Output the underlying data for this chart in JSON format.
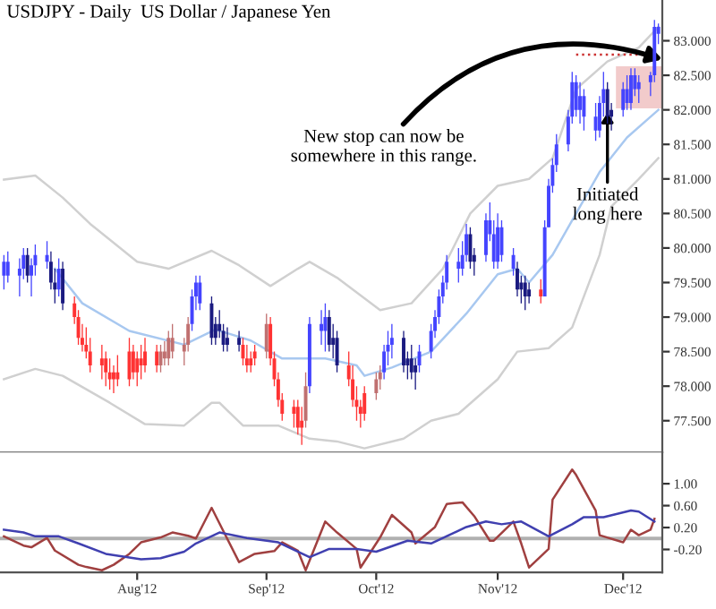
{
  "chart_data": [
    {
      "type": "candlestick",
      "title": "USDJPY - Daily  US Dollar / Japanese Yen",
      "x": [
        "2012-06-28",
        "2012-06-29",
        "2012-07-02",
        "2012-07-03",
        "2012-07-04",
        "2012-07-05",
        "2012-07-06",
        "2012-07-09",
        "2012-07-10",
        "2012-07-11",
        "2012-07-12",
        "2012-07-13",
        "2012-07-16",
        "2012-07-17",
        "2012-07-18",
        "2012-07-19",
        "2012-07-20",
        "2012-07-23",
        "2012-07-24",
        "2012-07-25",
        "2012-07-26",
        "2012-07-27",
        "2012-07-30",
        "2012-07-31",
        "2012-08-01",
        "2012-08-02",
        "2012-08-03",
        "2012-08-06",
        "2012-08-07",
        "2012-08-08",
        "2012-08-09",
        "2012-08-10",
        "2012-08-13",
        "2012-08-14",
        "2012-08-15",
        "2012-08-16",
        "2012-08-17",
        "2012-08-20",
        "2012-08-21",
        "2012-08-22",
        "2012-08-23",
        "2012-08-24",
        "2012-08-27",
        "2012-08-28",
        "2012-08-29",
        "2012-08-30",
        "2012-08-31",
        "2012-09-03",
        "2012-09-04",
        "2012-09-05",
        "2012-09-06",
        "2012-09-07",
        "2012-09-10",
        "2012-09-11",
        "2012-09-12",
        "2012-09-13",
        "2012-09-14",
        "2012-09-17",
        "2012-09-18",
        "2012-09-19",
        "2012-09-20",
        "2012-09-21",
        "2012-09-24",
        "2012-09-25",
        "2012-09-26",
        "2012-09-27",
        "2012-09-28",
        "2012-10-01",
        "2012-10-02",
        "2012-10-03",
        "2012-10-04",
        "2012-10-05",
        "2012-10-08",
        "2012-10-09",
        "2012-10-10",
        "2012-10-11",
        "2012-10-12",
        "2012-10-15",
        "2012-10-16",
        "2012-10-17",
        "2012-10-18",
        "2012-10-19",
        "2012-10-22",
        "2012-10-23",
        "2012-10-24",
        "2012-10-25",
        "2012-10-26",
        "2012-10-29",
        "2012-10-30",
        "2012-10-31",
        "2012-11-01",
        "2012-11-02",
        "2012-11-05",
        "2012-11-06",
        "2012-11-07",
        "2012-11-08",
        "2012-11-09",
        "2012-11-12",
        "2012-11-13",
        "2012-11-14",
        "2012-11-15",
        "2012-11-16",
        "2012-11-19",
        "2012-11-20",
        "2012-11-21",
        "2012-11-22",
        "2012-11-23",
        "2012-11-26",
        "2012-11-27",
        "2012-11-28",
        "2012-11-29",
        "2012-11-30",
        "2012-12-03",
        "2012-12-04",
        "2012-12-05",
        "2012-12-06",
        "2012-12-07",
        "2012-12-10",
        "2012-12-11",
        "2012-12-12"
      ],
      "ohlc": [
        [
          79.6,
          79.9,
          79.4,
          79.8
        ],
        [
          79.6,
          79.95,
          79.5,
          79.8
        ],
        [
          79.6,
          79.85,
          79.3,
          79.7
        ],
        [
          79.7,
          80.0,
          79.55,
          79.9
        ],
        [
          79.9,
          80.0,
          79.5,
          79.6
        ],
        [
          79.6,
          79.85,
          79.3,
          79.75
        ],
        [
          79.75,
          80.05,
          79.6,
          79.9
        ],
        [
          79.8,
          80.1,
          79.7,
          79.9
        ],
        [
          79.8,
          79.95,
          79.4,
          79.5
        ],
        [
          79.5,
          79.7,
          79.2,
          79.4
        ],
        [
          79.4,
          79.85,
          79.3,
          79.7
        ],
        [
          79.7,
          79.8,
          79.1,
          79.2
        ],
        [
          79.2,
          79.3,
          78.9,
          79.0
        ],
        [
          79.0,
          79.1,
          78.6,
          78.7
        ],
        [
          78.7,
          78.9,
          78.5,
          78.6
        ],
        [
          78.6,
          78.85,
          78.4,
          78.5
        ],
        [
          78.5,
          78.7,
          78.2,
          78.3
        ],
        [
          78.4,
          78.6,
          78.1,
          78.3
        ],
        [
          78.4,
          78.5,
          78.0,
          78.2
        ],
        [
          78.2,
          78.4,
          77.95,
          78.1
        ],
        [
          78.2,
          78.3,
          77.9,
          78.1
        ],
        [
          78.2,
          78.45,
          78.0,
          78.1
        ],
        [
          78.5,
          78.7,
          78.0,
          78.1
        ],
        [
          78.5,
          78.6,
          78.1,
          78.2
        ],
        [
          78.4,
          78.5,
          78.0,
          78.2
        ],
        [
          78.4,
          78.6,
          78.1,
          78.3
        ],
        [
          78.5,
          78.7,
          78.2,
          78.3
        ],
        [
          78.5,
          78.6,
          78.2,
          78.3
        ],
        [
          78.3,
          78.6,
          78.2,
          78.5
        ],
        [
          78.4,
          78.65,
          78.3,
          78.5
        ],
        [
          78.4,
          78.8,
          78.3,
          78.7
        ],
        [
          78.5,
          78.9,
          78.4,
          78.7
        ],
        [
          78.5,
          78.7,
          78.3,
          78.6
        ],
        [
          78.6,
          79.0,
          78.5,
          78.9
        ],
        [
          78.9,
          79.4,
          78.8,
          79.3
        ],
        [
          79.3,
          79.6,
          79.1,
          79.5
        ],
        [
          79.2,
          79.6,
          79.1,
          79.5
        ],
        [
          79.2,
          79.3,
          78.6,
          78.7
        ],
        [
          78.9,
          79.0,
          78.6,
          78.7
        ],
        [
          78.9,
          79.1,
          78.7,
          78.8
        ],
        [
          78.8,
          78.9,
          78.5,
          78.6
        ],
        [
          78.7,
          78.85,
          78.5,
          78.6
        ],
        [
          78.7,
          78.8,
          78.5,
          78.6
        ],
        [
          78.6,
          78.7,
          78.3,
          78.4
        ],
        [
          78.4,
          78.6,
          78.2,
          78.3
        ],
        [
          78.4,
          78.5,
          78.2,
          78.3
        ],
        [
          78.5,
          78.6,
          78.3,
          78.4
        ],
        [
          78.5,
          79.05,
          78.4,
          78.9
        ],
        [
          78.9,
          79.0,
          78.3,
          78.4
        ],
        [
          78.4,
          78.5,
          78.0,
          78.1
        ],
        [
          78.1,
          78.2,
          77.7,
          77.8
        ],
        [
          77.8,
          77.9,
          77.5,
          77.6
        ],
        [
          77.7,
          77.8,
          77.4,
          77.6
        ],
        [
          77.7,
          77.8,
          77.3,
          77.4
        ],
        [
          77.5,
          77.7,
          77.15,
          77.4
        ],
        [
          77.5,
          78.2,
          77.4,
          78.0
        ],
        [
          78.0,
          79.0,
          77.9,
          78.9
        ],
        [
          78.8,
          79.1,
          78.6,
          78.9
        ],
        [
          78.8,
          79.2,
          78.5,
          79.0
        ],
        [
          79.0,
          79.1,
          78.5,
          78.6
        ],
        [
          78.7,
          78.9,
          78.4,
          78.6
        ],
        [
          78.7,
          78.8,
          78.2,
          78.3
        ],
        [
          78.3,
          78.5,
          78.0,
          78.1
        ],
        [
          78.1,
          78.3,
          77.7,
          77.8
        ],
        [
          77.8,
          78.0,
          77.5,
          77.7
        ],
        [
          77.7,
          77.8,
          77.4,
          77.6
        ],
        [
          77.9,
          78.0,
          77.5,
          77.6
        ],
        [
          77.9,
          78.2,
          77.8,
          78.1
        ],
        [
          78.1,
          78.3,
          77.95,
          78.2
        ],
        [
          78.2,
          78.6,
          78.1,
          78.5
        ],
        [
          78.5,
          78.8,
          78.3,
          78.6
        ],
        [
          78.6,
          78.9,
          78.4,
          78.7
        ],
        [
          78.7,
          78.8,
          78.2,
          78.3
        ],
        [
          78.4,
          78.5,
          78.1,
          78.3
        ],
        [
          78.4,
          78.6,
          78.1,
          78.2
        ],
        [
          78.3,
          78.4,
          77.95,
          78.2
        ],
        [
          78.3,
          78.6,
          78.2,
          78.5
        ],
        [
          78.5,
          78.9,
          78.4,
          78.8
        ],
        [
          78.8,
          79.1,
          78.7,
          79.0
        ],
        [
          79.0,
          79.4,
          78.9,
          79.3
        ],
        [
          79.3,
          79.6,
          79.2,
          79.5
        ],
        [
          79.5,
          79.9,
          79.4,
          79.8
        ],
        [
          79.7,
          80.0,
          79.5,
          79.8
        ],
        [
          79.7,
          80.1,
          79.6,
          79.9
        ],
        [
          79.9,
          80.35,
          79.8,
          80.2
        ],
        [
          80.2,
          80.3,
          79.7,
          79.8
        ],
        [
          79.9,
          80.0,
          79.6,
          79.8
        ],
        [
          79.9,
          80.5,
          79.8,
          80.4
        ],
        [
          80.2,
          80.66,
          80.1,
          80.4
        ],
        [
          79.8,
          80.4,
          79.7,
          80.2
        ],
        [
          79.8,
          80.5,
          79.7,
          80.3
        ],
        [
          79.9,
          80.4,
          79.8,
          80.3
        ],
        [
          79.7,
          80.0,
          79.6,
          79.9
        ],
        [
          79.7,
          79.8,
          79.3,
          79.4
        ],
        [
          79.5,
          79.6,
          79.2,
          79.4
        ],
        [
          79.5,
          79.6,
          79.1,
          79.3
        ],
        [
          79.4,
          79.5,
          79.2,
          79.3
        ],
        [
          79.4,
          79.55,
          79.2,
          79.3
        ],
        [
          79.3,
          80.4,
          79.3,
          80.3
        ],
        [
          80.3,
          81.0,
          80.3,
          80.9
        ],
        [
          80.9,
          81.3,
          80.8,
          81.2
        ],
        [
          81.2,
          81.65,
          81.1,
          81.5
        ],
        [
          81.5,
          82.0,
          81.4,
          81.9
        ],
        [
          81.9,
          82.55,
          81.8,
          82.4
        ],
        [
          82.0,
          82.5,
          81.9,
          82.4
        ],
        [
          82.0,
          82.4,
          81.8,
          82.2
        ],
        [
          81.9,
          82.3,
          81.7,
          82.2
        ],
        [
          81.7,
          82.1,
          81.55,
          81.9
        ],
        [
          81.7,
          82.2,
          81.6,
          82.1
        ],
        [
          82.1,
          82.55,
          81.9,
          82.3
        ],
        [
          82.3,
          82.4,
          81.8,
          81.9
        ],
        [
          82.0,
          82.1,
          81.7,
          81.9
        ],
        [
          82.0,
          82.4,
          81.9,
          82.3
        ],
        [
          82.1,
          82.5,
          82.0,
          82.3
        ],
        [
          82.1,
          82.6,
          82.0,
          82.5
        ],
        [
          82.3,
          82.6,
          82.2,
          82.5
        ],
        [
          82.3,
          82.5,
          82.1,
          82.4
        ],
        [
          82.4,
          82.55,
          82.2,
          82.5
        ],
        [
          82.5,
          83.3,
          82.4,
          83.2
        ],
        [
          83.1,
          83.25,
          82.95,
          83.2
        ]
      ],
      "colors": [
        "#4444ff",
        "#4444ff",
        "#4444ff",
        "#4444ff",
        "#1a1a80",
        "#4444ff",
        "#4444ff",
        "#4444ff",
        "#1a1a80",
        "#1a1a80",
        "#4444ff",
        "#1a1a80",
        "#ff3333",
        "#ff3333",
        "#ff3333",
        "#ff3333",
        "#ff3333",
        "#ff3333",
        "#ff3333",
        "#ff3333",
        "#ff3333",
        "#ff3333",
        "#ff3333",
        "#ff3333",
        "#ff3333",
        "#ff3333",
        "#ff3333",
        "#ff3333",
        "#c07070",
        "#c07070",
        "#c07070",
        "#c07070",
        "#c07070",
        "#c07070",
        "#4444ff",
        "#4444ff",
        "#4444ff",
        "#1a1a80",
        "#1a1a80",
        "#1a1a80",
        "#1a1a80",
        "#1a1a80",
        "#1a1a80",
        "#ff3333",
        "#ff3333",
        "#ff3333",
        "#ff3333",
        "#c07070",
        "#ff3333",
        "#ff3333",
        "#ff3333",
        "#ff3333",
        "#ff3333",
        "#ff3333",
        "#ff3333",
        "#c07070",
        "#4444ff",
        "#4444ff",
        "#4444ff",
        "#1a1a80",
        "#1a1a80",
        "#1a1a80",
        "#ff3333",
        "#ff3333",
        "#ff3333",
        "#ff3333",
        "#ff3333",
        "#c07070",
        "#c07070",
        "#4444ff",
        "#4444ff",
        "#4444ff",
        "#1a1a80",
        "#1a1a80",
        "#1a1a80",
        "#1a1a80",
        "#4444ff",
        "#4444ff",
        "#4444ff",
        "#4444ff",
        "#4444ff",
        "#4444ff",
        "#4444ff",
        "#4444ff",
        "#4444ff",
        "#1a1a80",
        "#1a1a80",
        "#4444ff",
        "#4444ff",
        "#4444ff",
        "#4444ff",
        "#4444ff",
        "#4444ff",
        "#1a1a80",
        "#1a1a80",
        "#1a1a80",
        "#1a1a80",
        "#ff3333",
        "#4444ff",
        "#4444ff",
        "#4444ff",
        "#4444ff",
        "#4444ff",
        "#4444ff",
        "#4444ff",
        "#4444ff",
        "#4444ff",
        "#4444ff",
        "#4444ff",
        "#4444ff",
        "#1a1a80",
        "#1a1a80",
        "#4444ff",
        "#4444ff",
        "#4444ff",
        "#4444ff",
        "#4444ff",
        "#4444ff",
        "#4444ff",
        "#4444ff"
      ],
      "series": [
        {
          "type": "line",
          "color": "#d0d0d0",
          "x": [
            "2012-06-28",
            "2012-07-06",
            "2012-07-13",
            "2012-07-20",
            "2012-08-01",
            "2012-08-09",
            "2012-08-20",
            "2012-08-27",
            "2012-09-04",
            "2012-09-11",
            "2012-09-14",
            "2012-09-21",
            "2012-10-02",
            "2012-10-10",
            "2012-10-18",
            "2012-10-25",
            "2012-11-01",
            "2012-11-09",
            "2012-11-15",
            "2012-11-21",
            "2012-11-29",
            "2012-12-07",
            "2012-12-12"
          ],
          "values": [
            80.99,
            81.05,
            80.73,
            80.35,
            79.8,
            79.7,
            79.96,
            79.75,
            79.45,
            79.7,
            79.8,
            79.57,
            79.1,
            79.2,
            79.7,
            80.5,
            80.9,
            81.0,
            81.3,
            82.3,
            82.7,
            82.9,
            83.2
          ]
        },
        {
          "type": "line",
          "color": "#a8c8f0",
          "x": [
            "2012-07-11",
            "2012-07-18",
            "2012-07-30",
            "2012-08-13",
            "2012-08-21",
            "2012-08-30",
            "2012-09-07",
            "2012-09-18",
            "2012-09-26",
            "2012-09-28",
            "2012-10-05",
            "2012-10-15",
            "2012-10-24",
            "2012-11-01",
            "2012-11-06",
            "2012-11-09",
            "2012-11-15",
            "2012-11-21",
            "2012-11-27",
            "2012-12-04",
            "2012-12-10",
            "2012-12-12"
          ],
          "values": [
            79.7,
            79.2,
            78.8,
            78.6,
            78.82,
            78.66,
            78.4,
            78.4,
            78.3,
            78.15,
            78.27,
            78.5,
            79.05,
            79.62,
            79.7,
            79.5,
            79.9,
            80.5,
            81.1,
            81.6,
            81.9,
            82.0
          ]
        },
        {
          "type": "line",
          "color": "#d0d0d0",
          "x": [
            "2012-06-28",
            "2012-07-06",
            "2012-07-13",
            "2012-07-25",
            "2012-08-03",
            "2012-08-13",
            "2012-08-20",
            "2012-08-22",
            "2012-08-28",
            "2012-09-06",
            "2012-09-14",
            "2012-09-21",
            "2012-09-28",
            "2012-10-08",
            "2012-10-15",
            "2012-10-22",
            "2012-11-01",
            "2012-11-06",
            "2012-11-14",
            "2012-11-20",
            "2012-11-27",
            "2012-11-30",
            "2012-12-07",
            "2012-12-12"
          ],
          "values": [
            78.1,
            78.25,
            78.15,
            77.76,
            77.45,
            77.43,
            77.76,
            77.76,
            77.43,
            77.43,
            77.24,
            77.2,
            77.1,
            77.24,
            77.5,
            77.6,
            78.1,
            78.5,
            78.55,
            78.85,
            79.9,
            80.6,
            81.0,
            81.3
          ]
        },
        {
          "type": "line",
          "color": "#cc3333",
          "line_style": "dotted",
          "x": [
            "2012-11-21",
            "2012-12-10"
          ],
          "values": [
            82.8,
            82.8
          ]
        }
      ],
      "bands": [
        {
          "axis": "y",
          "from": 82.02,
          "to": 82.63,
          "color": "#e8a0a0"
        }
      ],
      "annotations": [
        {
          "text": "New stop can now be\nsomewhere in this range.",
          "x": "2012-12-13",
          "y": 82.73
        },
        {
          "text": "Initiated\nlong here",
          "x": "2012-11-29",
          "y": 81.96
        }
      ],
      "xlim": [
        "2012-06-27",
        "2012-12-13"
      ],
      "ylim": [
        77.04,
        83.59
      ],
      "yticks": [
        {
          "value": 77.5,
          "label": "77.500"
        },
        {
          "value": 78,
          "label": "78.000"
        },
        {
          "value": 78.5,
          "label": "78.500"
        },
        {
          "value": 79,
          "label": "79.000"
        },
        {
          "value": 79.5,
          "label": "79.500"
        },
        {
          "value": 80,
          "label": "80.000"
        },
        {
          "value": 80.5,
          "label": "80.500"
        },
        {
          "value": 81,
          "label": "81.000"
        },
        {
          "value": 81.5,
          "label": "81.500"
        },
        {
          "value": 82,
          "label": "82.000"
        },
        {
          "value": 82.5,
          "label": "82.500"
        },
        {
          "value": 83,
          "label": "83.000"
        }
      ],
      "tick_labels": "y"
    },
    {
      "type": "line",
      "series": [
        {
          "color": "#a04040",
          "x": [
            "2012-06-28",
            "2012-07-03",
            "2012-07-05",
            "2012-07-09",
            "2012-07-11",
            "2012-07-17",
            "2012-07-19",
            "2012-07-23",
            "2012-07-26",
            "2012-07-30",
            "2012-08-02",
            "2012-08-07",
            "2012-08-10",
            "2012-08-14",
            "2012-08-16",
            "2012-08-20",
            "2012-08-27",
            "2012-08-31",
            "2012-09-05",
            "2012-09-07",
            "2012-09-11",
            "2012-09-13",
            "2012-09-18",
            "2012-09-21",
            "2012-09-26",
            "2012-09-27",
            "2012-10-02",
            "2012-10-05",
            "2012-10-10",
            "2012-10-11",
            "2012-10-16",
            "2012-10-19",
            "2012-10-23",
            "2012-10-26",
            "2012-10-30",
            "2012-10-31",
            "2012-11-05",
            "2012-11-07",
            "2012-11-09",
            "2012-11-14",
            "2012-11-15",
            "2012-11-20",
            "2012-11-21",
            "2012-11-26",
            "2012-11-27",
            "2012-12-03",
            "2012-12-05",
            "2012-12-07",
            "2012-12-10",
            "2012-12-11"
          ],
          "values": [
            0.04,
            -0.13,
            -0.16,
            0.01,
            -0.22,
            -0.48,
            -0.52,
            -0.58,
            -0.48,
            -0.28,
            -0.07,
            0.02,
            0.11,
            0.05,
            0.0,
            0.56,
            -0.43,
            -0.28,
            -0.23,
            -0.07,
            -0.22,
            -0.58,
            0.31,
            0.11,
            -0.19,
            -0.53,
            0.02,
            0.43,
            0.11,
            -0.09,
            0.21,
            0.63,
            0.66,
            0.41,
            -0.04,
            -0.04,
            0.31,
            -0.09,
            -0.53,
            -0.19,
            0.71,
            1.26,
            1.16,
            0.51,
            0.06,
            -0.07,
            0.16,
            0.06,
            0.16,
            0.36
          ]
        },
        {
          "color": "#4040b0",
          "x": [
            "2012-06-28",
            "2012-07-03",
            "2012-07-06",
            "2012-07-12",
            "2012-07-17",
            "2012-07-24",
            "2012-08-02",
            "2012-08-07",
            "2012-08-13",
            "2012-08-16",
            "2012-08-22",
            "2012-08-29",
            "2012-09-06",
            "2012-09-14",
            "2012-09-19",
            "2012-09-26",
            "2012-10-01",
            "2012-10-09",
            "2012-10-15",
            "2012-10-24",
            "2012-10-29",
            "2012-11-02",
            "2012-11-07",
            "2012-11-14",
            "2012-11-20",
            "2012-11-23",
            "2012-11-28",
            "2012-12-05",
            "2012-12-07",
            "2012-12-11"
          ],
          "values": [
            0.16,
            0.11,
            0.04,
            0.04,
            -0.09,
            -0.28,
            -0.38,
            -0.36,
            -0.24,
            -0.09,
            0.11,
            0.01,
            -0.07,
            -0.34,
            -0.19,
            -0.19,
            -0.24,
            -0.04,
            -0.09,
            0.21,
            0.31,
            0.26,
            0.31,
            0.04,
            0.26,
            0.39,
            0.39,
            0.51,
            0.49,
            0.31
          ]
        }
      ],
      "ref_lines": [
        {
          "axis": "y",
          "value": 0,
          "color": "#b0b0b0"
        }
      ],
      "xlim": [
        "2012-06-27",
        "2012-12-13"
      ],
      "ylim": [
        -0.62,
        1.57
      ],
      "xticks": [
        {
          "value": "2012-08-01",
          "label": "Aug'12"
        },
        {
          "value": "2012-09-03",
          "label": "Sep'12"
        },
        {
          "value": "2012-10-01",
          "label": "Oct'12"
        },
        {
          "value": "2012-11-01",
          "label": "Nov'12"
        },
        {
          "value": "2012-12-03",
          "label": "Dec'12"
        }
      ],
      "yticks": [
        {
          "value": 1,
          "label": "1.00"
        },
        {
          "value": 0.6,
          "label": "0.60"
        },
        {
          "value": 0.2,
          "label": "0.20"
        },
        {
          "value": -0.2,
          "label": "-0.20"
        }
      ]
    }
  ]
}
